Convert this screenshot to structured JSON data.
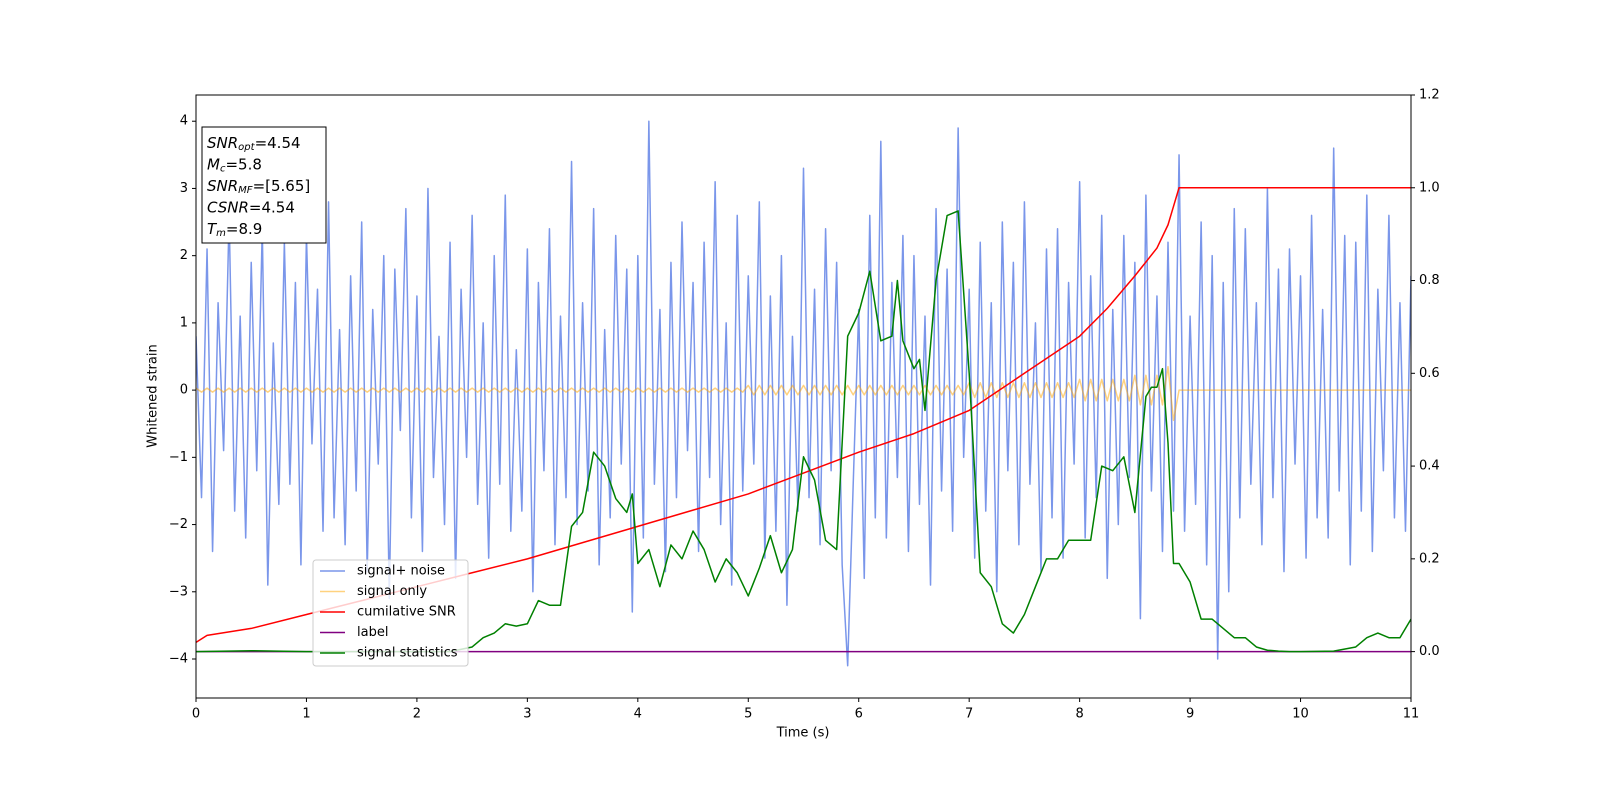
{
  "chart_data": {
    "type": "line",
    "xlabel": "Time (s)",
    "ylabel": "Whitened strain",
    "xlim": [
      0,
      11
    ],
    "ylim": [
      -4.58,
      4.39
    ],
    "y2lim": [
      -0.1,
      1.2
    ],
    "xticks": [
      0,
      1,
      2,
      3,
      4,
      5,
      6,
      7,
      8,
      9,
      10,
      11
    ],
    "yticks": [
      {
        "value": -4,
        "label": "−4"
      },
      {
        "value": -3,
        "label": "−3"
      },
      {
        "value": -2,
        "label": "−2"
      },
      {
        "value": -1,
        "label": "−1"
      },
      0,
      1,
      2,
      3,
      4
    ],
    "y2ticks": [
      {
        "value": 0,
        "label": "0.0"
      },
      0.2,
      0.4,
      0.6,
      0.8,
      {
        "value": 1,
        "label": "1.0"
      },
      1.2
    ],
    "grid": false,
    "annotations": [
      {
        "math": "SNR",
        "sub": "opt",
        "rest": "=4.54"
      },
      {
        "math": "M",
        "sub": "c",
        "rest": "=5.8"
      },
      {
        "math": "SNR",
        "sub": "MF",
        "rest": "=[5.65]"
      },
      {
        "math": "CSNR",
        "rest": "=4.54"
      },
      {
        "math": "T",
        "sub": "m",
        "rest": "=8.9"
      }
    ],
    "x": [
      0,
      0.05,
      0.1,
      0.15,
      0.2,
      0.25,
      0.3,
      0.35,
      0.4,
      0.45,
      0.5,
      0.55,
      0.6,
      0.65,
      0.7,
      0.75,
      0.8,
      0.85,
      0.9,
      0.95,
      1,
      1.05,
      1.1,
      1.15,
      1.2,
      1.25,
      1.3,
      1.35,
      1.4,
      1.45,
      1.5,
      1.55,
      1.6,
      1.65,
      1.7,
      1.75,
      1.8,
      1.85,
      1.9,
      1.95,
      2,
      2.05,
      2.1,
      2.15,
      2.2,
      2.25,
      2.3,
      2.35,
      2.4,
      2.45,
      2.5,
      2.55,
      2.6,
      2.65,
      2.7,
      2.75,
      2.8,
      2.85,
      2.9,
      2.95,
      3,
      3.05,
      3.1,
      3.15,
      3.2,
      3.25,
      3.3,
      3.35,
      3.4,
      3.45,
      3.5,
      3.55,
      3.6,
      3.65,
      3.7,
      3.75,
      3.8,
      3.85,
      3.9,
      3.95,
      4,
      4.05,
      4.1,
      4.15,
      4.2,
      4.25,
      4.3,
      4.35,
      4.4,
      4.45,
      4.5,
      4.55,
      4.6,
      4.65,
      4.7,
      4.75,
      4.8,
      4.85,
      4.9,
      4.95,
      5,
      5.05,
      5.1,
      5.15,
      5.2,
      5.25,
      5.3,
      5.35,
      5.4,
      5.45,
      5.5,
      5.55,
      5.6,
      5.65,
      5.7,
      5.75,
      5.8,
      5.85,
      5.9,
      5.95,
      6,
      6.05,
      6.1,
      6.15,
      6.2,
      6.25,
      6.3,
      6.35,
      6.4,
      6.45,
      6.5,
      6.55,
      6.6,
      6.65,
      6.7,
      6.75,
      6.8,
      6.85,
      6.9,
      6.95,
      7,
      7.05,
      7.1,
      7.15,
      7.2,
      7.25,
      7.3,
      7.35,
      7.4,
      7.45,
      7.5,
      7.55,
      7.6,
      7.65,
      7.7,
      7.75,
      7.8,
      7.85,
      7.9,
      7.95,
      8,
      8.05,
      8.1,
      8.15,
      8.2,
      8.25,
      8.3,
      8.35,
      8.4,
      8.45,
      8.5,
      8.55,
      8.6,
      8.65,
      8.7,
      8.75,
      8.8,
      8.85,
      8.9,
      8.95,
      9,
      9.05,
      9.1,
      9.15,
      9.2,
      9.25,
      9.3,
      9.35,
      9.4,
      9.45,
      9.5,
      9.55,
      9.6,
      9.65,
      9.7,
      9.75,
      9.8,
      9.85,
      9.9,
      9.95,
      10,
      10.05,
      10.1,
      10.15,
      10.2,
      10.25,
      10.3,
      10.35,
      10.4,
      10.45,
      10.5,
      10.55,
      10.6,
      10.65,
      10.7,
      10.75,
      10.8,
      10.85,
      10.9,
      10.95,
      11
    ],
    "series": [
      {
        "name": "signal+ noise",
        "color": "royalblue",
        "alpha": 0.7,
        "values": [
          0.8,
          -1.6,
          2.1,
          -2.4,
          1.3,
          -0.9,
          2.6,
          -1.8,
          1.1,
          -2.2,
          1.9,
          -1.2,
          2.4,
          -2.9,
          0.7,
          -1.7,
          2.2,
          -1.4,
          1.6,
          -2.6,
          2.3,
          -0.8,
          1.5,
          -2.1,
          2.8,
          -1.9,
          0.9,
          -2.3,
          1.7,
          -1.5,
          2.5,
          -2.7,
          1.2,
          -1.1,
          2.0,
          -3.1,
          1.8,
          -0.6,
          2.7,
          -1.9,
          1.4,
          -2.4,
          3.0,
          -1.3,
          0.8,
          -2.0,
          2.2,
          -2.8,
          1.5,
          -1.0,
          2.6,
          -1.7,
          1.0,
          -2.5,
          2.0,
          -1.4,
          2.9,
          -2.1,
          0.6,
          -1.8,
          2.1,
          -3.0,
          1.6,
          -1.2,
          2.4,
          -2.3,
          1.1,
          -1.6,
          3.4,
          -2.0,
          1.3,
          -1.5,
          2.7,
          -2.6,
          0.9,
          -1.9,
          2.3,
          -1.1,
          1.8,
          -3.3,
          2.0,
          -2.2,
          4.0,
          -1.4,
          1.2,
          -2.7,
          1.9,
          -1.6,
          2.5,
          -0.9,
          1.6,
          -2.4,
          2.2,
          -1.3,
          3.1,
          -2.0,
          1.0,
          -2.9,
          2.6,
          -1.5,
          1.7,
          -1.1,
          2.8,
          -2.5,
          1.4,
          -2.1,
          2.0,
          -3.2,
          0.8,
          -1.8,
          3.3,
          -1.6,
          1.5,
          -2.3,
          2.4,
          -1.2,
          1.9,
          -2.6,
          -4.1,
          -1.4,
          1.2,
          -2.8,
          2.6,
          -1.9,
          3.7,
          -2.2,
          1.6,
          -1.3,
          2.3,
          -2.4,
          2.0,
          -1.7,
          1.1,
          -2.9,
          2.7,
          -1.5,
          1.8,
          -2.1,
          3.9,
          -1.0,
          1.5,
          -2.5,
          2.2,
          -1.8,
          1.3,
          -3.0,
          2.5,
          -1.2,
          1.9,
          -2.3,
          2.8,
          -1.4,
          1.0,
          -2.7,
          2.1,
          -1.9,
          2.4,
          -2.5,
          1.6,
          -1.1,
          3.1,
          -2.2,
          1.7,
          -1.6,
          2.6,
          -2.8,
          1.2,
          -2.0,
          2.3,
          -1.3,
          1.9,
          -3.4,
          2.9,
          -1.5,
          1.4,
          -2.4,
          2.2,
          -1.8,
          3.5,
          -2.1,
          1.1,
          -1.7,
          2.5,
          -2.6,
          2.0,
          -4.0,
          1.6,
          -3.0,
          2.7,
          -1.9,
          2.4,
          -1.4,
          1.3,
          -2.3,
          3.0,
          -1.6,
          1.8,
          -2.7,
          2.1,
          -1.1,
          1.7,
          -2.5,
          2.6,
          -1.9,
          1.2,
          -2.2,
          3.6,
          -1.5,
          2.3,
          -2.6,
          2.2,
          -1.8,
          2.9,
          -2.4,
          1.5,
          -1.2,
          2.6,
          -1.9,
          1.3,
          -2.1,
          1.7
        ]
      },
      {
        "name": "signal only",
        "color": "orange",
        "alpha": 0.5,
        "values": [
          0.03,
          -0.03,
          0.03,
          -0.03,
          0.03,
          -0.03,
          0.03,
          -0.03,
          0.03,
          -0.03,
          0.03,
          -0.03,
          0.03,
          -0.03,
          0.03,
          -0.03,
          0.03,
          -0.03,
          0.03,
          -0.03,
          0.03,
          -0.03,
          0.03,
          -0.03,
          0.03,
          -0.03,
          0.03,
          -0.03,
          0.03,
          -0.03,
          0.03,
          -0.03,
          0.03,
          -0.03,
          0.03,
          -0.03,
          0.03,
          -0.03,
          0.03,
          -0.03,
          0.03,
          -0.03,
          0.03,
          -0.03,
          0.03,
          -0.03,
          0.03,
          -0.03,
          0.03,
          -0.03,
          0.03,
          -0.03,
          0.03,
          -0.03,
          0.03,
          -0.03,
          0.03,
          -0.03,
          0.03,
          -0.03,
          0.03,
          -0.03,
          0.03,
          -0.03,
          0.03,
          -0.03,
          0.03,
          -0.03,
          0.03,
          -0.03,
          0.03,
          -0.03,
          0.03,
          -0.03,
          0.03,
          -0.03,
          0.03,
          -0.03,
          0.03,
          -0.03,
          0.03,
          -0.03,
          0.03,
          -0.03,
          0.03,
          -0.03,
          0.03,
          -0.03,
          0.03,
          -0.03,
          0.03,
          -0.03,
          0.03,
          -0.03,
          0.03,
          -0.03,
          0.03,
          -0.03,
          0.03,
          -0.03,
          0.07,
          -0.07,
          0.07,
          -0.07,
          0.07,
          -0.07,
          0.07,
          -0.07,
          0.07,
          -0.07,
          0.07,
          -0.07,
          0.07,
          -0.07,
          0.07,
          -0.07,
          0.07,
          -0.07,
          0.07,
          -0.07,
          0.07,
          -0.07,
          0.07,
          -0.07,
          0.07,
          -0.07,
          0.07,
          -0.07,
          0.07,
          -0.07,
          0.07,
          -0.07,
          0.07,
          -0.07,
          0.07,
          -0.07,
          0.07,
          -0.07,
          0.07,
          -0.07,
          0.11,
          -0.11,
          0.11,
          -0.11,
          0.11,
          -0.11,
          0.11,
          -0.11,
          0.11,
          -0.11,
          0.11,
          -0.11,
          0.11,
          -0.11,
          0.11,
          -0.11,
          0.11,
          -0.11,
          0.11,
          -0.11,
          0.16,
          -0.16,
          0.16,
          -0.16,
          0.16,
          -0.16,
          0.16,
          -0.16,
          0.16,
          -0.16,
          0.22,
          -0.22,
          0.22,
          -0.22,
          0.22,
          -0.22,
          0.35,
          -0.45,
          0,
          0,
          0,
          0,
          0,
          0,
          0,
          0,
          0,
          0,
          0,
          0,
          0,
          0,
          0,
          0,
          0,
          0,
          0,
          0,
          0,
          0,
          0,
          0,
          0,
          0,
          0,
          0,
          0,
          0,
          0,
          0,
          0,
          0,
          0,
          0,
          0,
          0,
          0,
          0,
          0,
          0,
          0
        ]
      },
      {
        "name": "cumilative SNR",
        "color": "red",
        "axis": "y2",
        "x": [
          0,
          0.1,
          0.5,
          1,
          1.5,
          2,
          2.5,
          3,
          3.5,
          4,
          4.5,
          5,
          5.5,
          6,
          6.5,
          7,
          7.5,
          8,
          8.25,
          8.5,
          8.7,
          8.8,
          8.85,
          8.9,
          9,
          10,
          11
        ],
        "values": [
          0.02,
          0.035,
          0.05,
          0.08,
          0.11,
          0.14,
          0.17,
          0.2,
          0.235,
          0.27,
          0.305,
          0.34,
          0.385,
          0.43,
          0.47,
          0.52,
          0.6,
          0.68,
          0.74,
          0.81,
          0.87,
          0.92,
          0.96,
          1,
          1,
          1,
          1
        ]
      },
      {
        "name": "label",
        "color": "purple",
        "axis": "y2",
        "x": [
          0,
          11
        ],
        "values": [
          0,
          0
        ]
      },
      {
        "name": "signal statistics",
        "color": "green",
        "axis": "y2",
        "x": [
          0,
          0.5,
          1,
          1.5,
          2,
          2.3,
          2.5,
          2.6,
          2.7,
          2.8,
          2.9,
          3.0,
          3.1,
          3.2,
          3.3,
          3.4,
          3.5,
          3.6,
          3.7,
          3.8,
          3.9,
          3.95,
          4.0,
          4.1,
          4.2,
          4.3,
          4.4,
          4.5,
          4.6,
          4.7,
          4.8,
          4.9,
          5.0,
          5.05,
          5.1,
          5.2,
          5.3,
          5.4,
          5.5,
          5.6,
          5.7,
          5.8,
          5.9,
          6.0,
          6.1,
          6.2,
          6.3,
          6.35,
          6.4,
          6.5,
          6.55,
          6.6,
          6.7,
          6.8,
          6.9,
          7.0,
          7.1,
          7.2,
          7.3,
          7.4,
          7.5,
          7.6,
          7.7,
          7.8,
          7.9,
          8.0,
          8.1,
          8.2,
          8.3,
          8.4,
          8.5,
          8.6,
          8.65,
          8.7,
          8.75,
          8.8,
          8.85,
          8.9,
          9.0,
          9.1,
          9.2,
          9.3,
          9.4,
          9.5,
          9.6,
          9.7,
          9.8,
          9.9,
          10.0,
          10.3,
          10.5,
          10.6,
          10.7,
          10.8,
          10.9,
          11.0
        ],
        "values": [
          0,
          0.002,
          0,
          0,
          0,
          0,
          0.01,
          0.03,
          0.04,
          0.06,
          0.055,
          0.06,
          0.11,
          0.1,
          0.1,
          0.27,
          0.3,
          0.43,
          0.4,
          0.33,
          0.3,
          0.34,
          0.19,
          0.22,
          0.14,
          0.23,
          0.2,
          0.26,
          0.22,
          0.15,
          0.2,
          0.17,
          0.12,
          0.15,
          0.18,
          0.25,
          0.17,
          0.22,
          0.42,
          0.37,
          0.24,
          0.22,
          0.68,
          0.73,
          0.82,
          0.67,
          0.68,
          0.8,
          0.67,
          0.61,
          0.63,
          0.52,
          0.8,
          0.94,
          0.95,
          0.6,
          0.17,
          0.14,
          0.06,
          0.04,
          0.08,
          0.14,
          0.2,
          0.2,
          0.24,
          0.24,
          0.24,
          0.4,
          0.39,
          0.42,
          0.3,
          0.55,
          0.57,
          0.57,
          0.61,
          0.45,
          0.19,
          0.19,
          0.15,
          0.07,
          0.07,
          0.05,
          0.03,
          0.03,
          0.01,
          0.003,
          0.001,
          0,
          0,
          0.001,
          0.01,
          0.03,
          0.04,
          0.03,
          0.03,
          0.07
        ]
      }
    ]
  }
}
